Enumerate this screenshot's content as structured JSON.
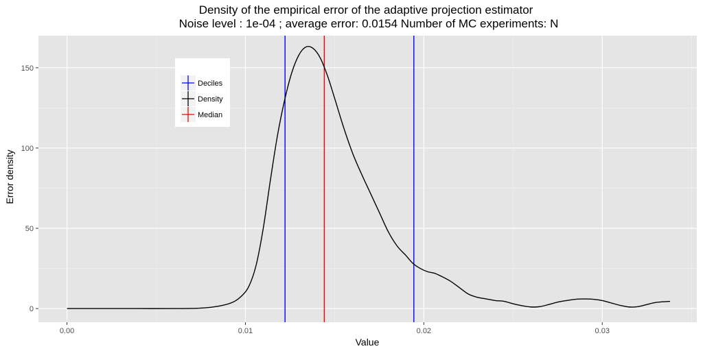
{
  "chart_data": {
    "type": "line",
    "title": "Density of the empirical error of the adaptive projection estimator",
    "subtitle": "Noise level : 1e-04 ; average error:  0.0154 Number of MC experiments:  N",
    "xlabel": "Value",
    "ylabel": "Error density",
    "xlim": [
      -0.0016,
      0.0353
    ],
    "ylim": [
      -8.5,
      170
    ],
    "x_ticks": [
      0.0,
      0.01,
      0.02,
      0.03
    ],
    "x_tick_labels": [
      "0.00",
      "0.01",
      "0.02",
      "0.03"
    ],
    "y_ticks": [
      0,
      50,
      100,
      150
    ],
    "y_tick_labels": [
      "0",
      "50",
      "100",
      "150"
    ],
    "grid": true,
    "legend": {
      "placement": "top-left inside",
      "entries": [
        {
          "label": "Deciles",
          "color": "#0000ff"
        },
        {
          "label": "Density",
          "color": "#000000"
        },
        {
          "label": "Median",
          "color": "#ff0000"
        }
      ]
    },
    "series": [
      {
        "name": "Density",
        "color": "#000000",
        "points": [
          [
            0.0,
            0
          ],
          [
            0.002,
            0
          ],
          [
            0.004,
            0
          ],
          [
            0.006,
            0
          ],
          [
            0.0075,
            0.3
          ],
          [
            0.0085,
            1.5
          ],
          [
            0.0093,
            4
          ],
          [
            0.0098,
            8
          ],
          [
            0.0102,
            14
          ],
          [
            0.0106,
            27
          ],
          [
            0.011,
            50
          ],
          [
            0.0114,
            80
          ],
          [
            0.0118,
            108
          ],
          [
            0.0122,
            130
          ],
          [
            0.0126,
            147
          ],
          [
            0.013,
            158
          ],
          [
            0.0134,
            163
          ],
          [
            0.0138,
            162
          ],
          [
            0.0142,
            156
          ],
          [
            0.0146,
            145
          ],
          [
            0.015,
            131
          ],
          [
            0.0155,
            113
          ],
          [
            0.016,
            97
          ],
          [
            0.0165,
            84
          ],
          [
            0.017,
            72
          ],
          [
            0.0175,
            60
          ],
          [
            0.018,
            48
          ],
          [
            0.0185,
            39
          ],
          [
            0.019,
            33
          ],
          [
            0.0194,
            28
          ],
          [
            0.0198,
            25
          ],
          [
            0.0202,
            23
          ],
          [
            0.0206,
            22
          ],
          [
            0.021,
            20
          ],
          [
            0.0215,
            17
          ],
          [
            0.022,
            13
          ],
          [
            0.0225,
            9
          ],
          [
            0.023,
            7
          ],
          [
            0.0235,
            6
          ],
          [
            0.024,
            5
          ],
          [
            0.0245,
            4.5
          ],
          [
            0.025,
            3
          ],
          [
            0.0255,
            1.8
          ],
          [
            0.026,
            1
          ],
          [
            0.0265,
            1.2
          ],
          [
            0.027,
            2.5
          ],
          [
            0.0275,
            4
          ],
          [
            0.028,
            5
          ],
          [
            0.0285,
            5.8
          ],
          [
            0.029,
            6
          ],
          [
            0.0295,
            5.8
          ],
          [
            0.03,
            5
          ],
          [
            0.0305,
            3.5
          ],
          [
            0.031,
            2
          ],
          [
            0.0315,
            1
          ],
          [
            0.032,
            1.2
          ],
          [
            0.0325,
            2.5
          ],
          [
            0.033,
            3.8
          ],
          [
            0.0338,
            4.5
          ]
        ]
      }
    ],
    "vlines": [
      {
        "name": "Deciles",
        "x": 0.01222,
        "color": "#0000ff"
      },
      {
        "name": "Median",
        "x": 0.01442,
        "color": "#ff0000"
      },
      {
        "name": "Deciles",
        "x": 0.01944,
        "color": "#0000ff"
      }
    ]
  }
}
